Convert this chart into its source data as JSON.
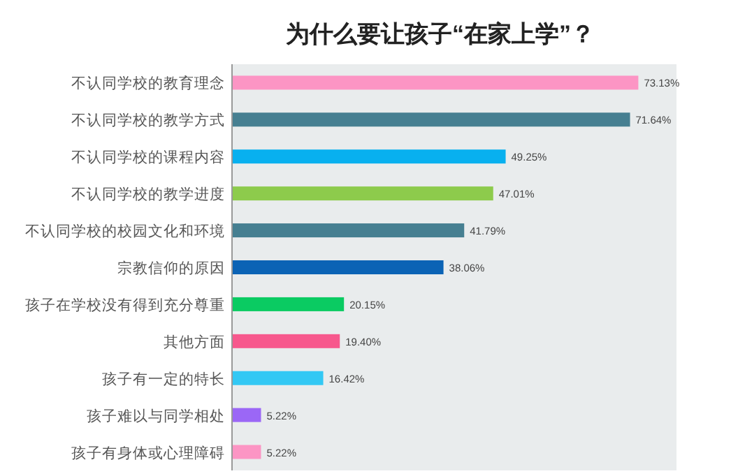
{
  "chart_data": {
    "type": "bar",
    "orientation": "horizontal",
    "title": "为什么要让孩子“在家上学”？",
    "categories": [
      "不认同学校的教育理念",
      "不认同学校的教学方式",
      "不认同学校的课程内容",
      "不认同学校的教学进度",
      "不认同学校的校园文化和环境",
      "宗教信仰的原因",
      "孩子在学校没有得到充分尊重",
      "其他方面",
      "孩子有一定的特长",
      "孩子难以与同学相处",
      "孩子有身体或心理障碍"
    ],
    "values": [
      73.13,
      71.64,
      49.25,
      47.01,
      41.79,
      38.06,
      20.15,
      19.4,
      16.42,
      5.22,
      5.22
    ],
    "colors": [
      "#fc95c4",
      "#467f91",
      "#08b0ef",
      "#8dcb4c",
      "#467f91",
      "#0b63b5",
      "#0acb62",
      "#f7588d",
      "#33c8f4",
      "#9b67f6",
      "#fc95c4"
    ],
    "value_labels": [
      "73.13%",
      "71.64%",
      "49.25%",
      "47.01%",
      "41.79%",
      "38.06%",
      "20.15%",
      "19.40%",
      "16.42%",
      "5.22%",
      "5.22%"
    ],
    "xlim": [
      0,
      80
    ]
  }
}
